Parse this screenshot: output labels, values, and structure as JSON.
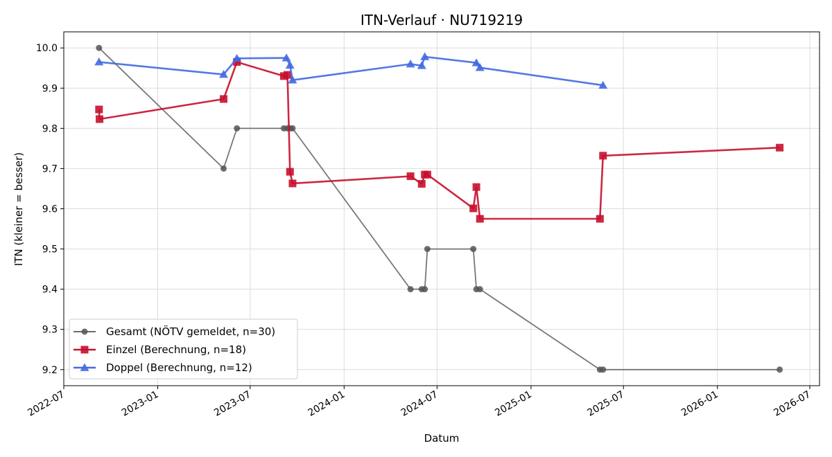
{
  "chart_data": {
    "type": "line",
    "title": "ITN-Verlauf · NU719219",
    "xlabel": "Datum",
    "ylabel": "ITN  (kleiner = besser)",
    "xlim": [
      "2022-07-01",
      "2026-07-20"
    ],
    "ylim": [
      9.16,
      10.04
    ],
    "grid": true,
    "legend_position": "lower-left",
    "x_ticks": [
      "2022-07",
      "2023-01",
      "2023-07",
      "2024-01",
      "2024-07",
      "2025-01",
      "2025-07",
      "2026-01",
      "2026-07"
    ],
    "y_ticks": [
      9.2,
      9.3,
      9.4,
      9.5,
      9.6,
      9.7,
      9.8,
      9.9,
      10.0
    ],
    "series": [
      {
        "name": "Gesamt (NÖTV gemeldet, n=30)",
        "color": "#555555",
        "marker": "circle",
        "points": [
          {
            "x": "2022-09-08",
            "y": 10.0
          },
          {
            "x": "2023-05-10",
            "y": 9.7
          },
          {
            "x": "2023-06-05",
            "y": 9.8
          },
          {
            "x": "2023-09-05",
            "y": 9.8
          },
          {
            "x": "2023-09-12",
            "y": 9.8
          },
          {
            "x": "2023-09-17",
            "y": 9.8
          },
          {
            "x": "2023-09-22",
            "y": 9.8
          },
          {
            "x": "2024-05-10",
            "y": 9.4
          },
          {
            "x": "2024-06-01",
            "y": 9.4
          },
          {
            "x": "2024-06-07",
            "y": 9.4
          },
          {
            "x": "2024-06-12",
            "y": 9.5
          },
          {
            "x": "2024-09-10",
            "y": 9.5
          },
          {
            "x": "2024-09-16",
            "y": 9.4
          },
          {
            "x": "2024-09-23",
            "y": 9.4
          },
          {
            "x": "2025-05-16",
            "y": 9.2
          },
          {
            "x": "2025-05-22",
            "y": 9.2
          },
          {
            "x": "2026-05-03",
            "y": 9.2
          }
        ]
      },
      {
        "name": "Einzel (Berechnung, n=18)",
        "color": "#c8102e",
        "marker": "square",
        "points": [
          {
            "x": "2022-09-08",
            "y": 9.847
          },
          {
            "x": "2022-09-09",
            "y": 9.823
          },
          {
            "x": "2023-05-10",
            "y": 9.873
          },
          {
            "x": "2023-06-05",
            "y": 9.965
          },
          {
            "x": "2023-09-05",
            "y": 9.93
          },
          {
            "x": "2023-09-12",
            "y": 9.933
          },
          {
            "x": "2023-09-17",
            "y": 9.692
          },
          {
            "x": "2023-09-22",
            "y": 9.663
          },
          {
            "x": "2024-05-10",
            "y": 9.681
          },
          {
            "x": "2024-06-01",
            "y": 9.662
          },
          {
            "x": "2024-06-07",
            "y": 9.685
          },
          {
            "x": "2024-06-12",
            "y": 9.685
          },
          {
            "x": "2024-09-10",
            "y": 9.601
          },
          {
            "x": "2024-09-16",
            "y": 9.654
          },
          {
            "x": "2024-09-23",
            "y": 9.575
          },
          {
            "x": "2025-05-16",
            "y": 9.575
          },
          {
            "x": "2025-05-22",
            "y": 9.732
          },
          {
            "x": "2026-05-03",
            "y": 9.752
          }
        ]
      },
      {
        "name": "Doppel (Berechnung, n=12)",
        "color": "#4169e1",
        "marker": "triangle",
        "points": [
          {
            "x": "2022-09-08",
            "y": 9.965
          },
          {
            "x": "2023-05-10",
            "y": 9.934
          },
          {
            "x": "2023-06-05",
            "y": 9.974
          },
          {
            "x": "2023-09-10",
            "y": 9.975
          },
          {
            "x": "2023-09-17",
            "y": 9.957
          },
          {
            "x": "2023-09-22",
            "y": 9.92
          },
          {
            "x": "2024-05-10",
            "y": 9.96
          },
          {
            "x": "2024-06-01",
            "y": 9.956
          },
          {
            "x": "2024-06-07",
            "y": 9.978
          },
          {
            "x": "2024-09-16",
            "y": 9.963
          },
          {
            "x": "2024-09-23",
            "y": 9.951
          },
          {
            "x": "2025-05-22",
            "y": 9.907
          }
        ]
      }
    ]
  }
}
